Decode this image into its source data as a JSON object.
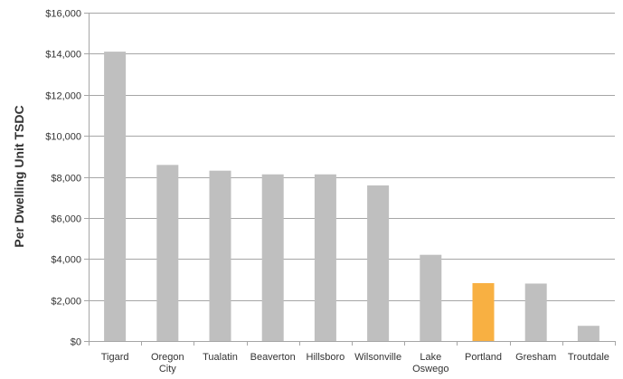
{
  "chart_data": {
    "type": "bar",
    "title": "",
    "xlabel": "",
    "ylabel": "Per Dwelling Unit TSDC",
    "categories": [
      "Tigard",
      "Oregon City",
      "Tualatin",
      "Beaverton",
      "Hillsboro",
      "Wilsonville",
      "Lake Oswego",
      "Portland",
      "Gresham",
      "Troutdale"
    ],
    "category_lines": [
      [
        "Tigard"
      ],
      [
        "Oregon",
        "City"
      ],
      [
        "Tualatin"
      ],
      [
        "Beaverton"
      ],
      [
        "Hillsboro"
      ],
      [
        "Wilsonville"
      ],
      [
        "Lake",
        "Oswego"
      ],
      [
        "Portland"
      ],
      [
        "Gresham"
      ],
      [
        "Troutdale"
      ]
    ],
    "values": [
      14100,
      8580,
      8300,
      8120,
      8120,
      7580,
      4200,
      2820,
      2800,
      740
    ],
    "ylim": [
      0,
      16000
    ],
    "yticks": [
      0,
      2000,
      4000,
      6000,
      8000,
      10000,
      12000,
      14000,
      16000
    ],
    "ytick_labels": [
      "$0",
      "$2,000",
      "$4,000",
      "$6,000",
      "$8,000",
      "$10,000",
      "$12,000",
      "$14,000",
      "$16,000"
    ],
    "grid": true,
    "legend": "none",
    "colors": {
      "default_bar": "#bfbfbf",
      "highlight_bar": "#f8b042",
      "highlight_category": "Portland"
    }
  }
}
